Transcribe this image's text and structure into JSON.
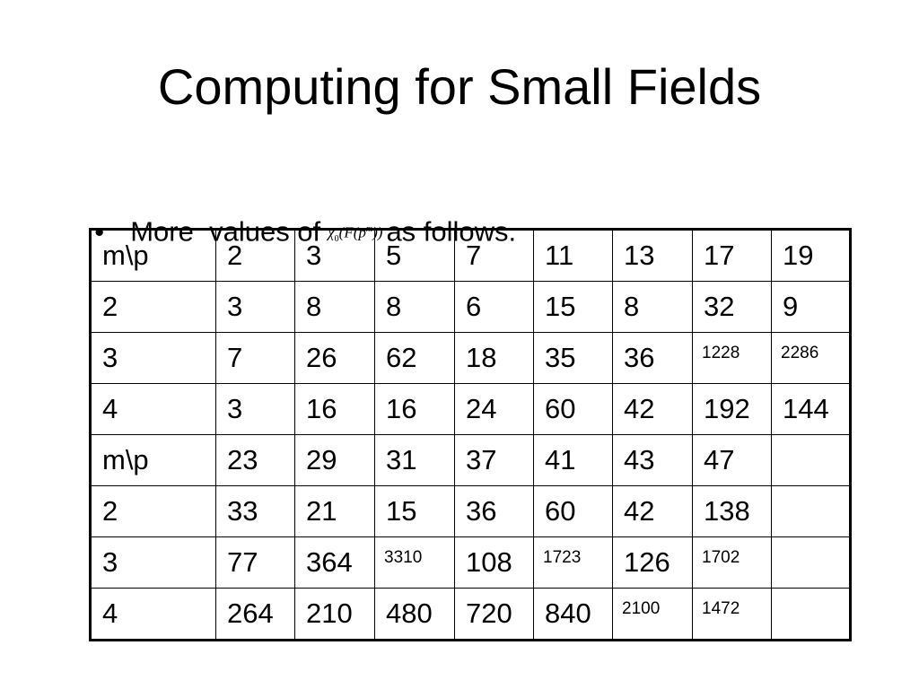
{
  "slide": {
    "title": "Computing for Small Fields",
    "bullet": {
      "symbol": "•",
      "text_before": "More  values of",
      "formula": "χ0(F(p^m))",
      "text_after": "as follows."
    }
  },
  "table": {
    "rows": [
      [
        {
          "v": "m\\p"
        },
        {
          "v": "2"
        },
        {
          "v": "3"
        },
        {
          "v": "5"
        },
        {
          "v": "7"
        },
        {
          "v": "11"
        },
        {
          "v": "13"
        },
        {
          "v": "17"
        },
        {
          "v": "19"
        }
      ],
      [
        {
          "v": "2"
        },
        {
          "v": "3"
        },
        {
          "v": "8"
        },
        {
          "v": "8"
        },
        {
          "v": "6"
        },
        {
          "v": "15"
        },
        {
          "v": "8"
        },
        {
          "v": "32"
        },
        {
          "v": "9"
        }
      ],
      [
        {
          "v": "3"
        },
        {
          "v": "7"
        },
        {
          "v": "26"
        },
        {
          "v": "62"
        },
        {
          "v": "18"
        },
        {
          "v": "35"
        },
        {
          "v": "36"
        },
        {
          "v": "1228",
          "small": true
        },
        {
          "v": "2286",
          "small": true
        }
      ],
      [
        {
          "v": "4"
        },
        {
          "v": "3"
        },
        {
          "v": "16"
        },
        {
          "v": "16"
        },
        {
          "v": "24"
        },
        {
          "v": "60"
        },
        {
          "v": "42"
        },
        {
          "v": "192"
        },
        {
          "v": "144"
        }
      ],
      [
        {
          "v": "m\\p"
        },
        {
          "v": "23"
        },
        {
          "v": "29"
        },
        {
          "v": "31"
        },
        {
          "v": "37"
        },
        {
          "v": "41"
        },
        {
          "v": "43"
        },
        {
          "v": "47"
        },
        {
          "v": ""
        }
      ],
      [
        {
          "v": "2"
        },
        {
          "v": "33"
        },
        {
          "v": "21"
        },
        {
          "v": "15"
        },
        {
          "v": "36"
        },
        {
          "v": "60"
        },
        {
          "v": "42"
        },
        {
          "v": "138"
        },
        {
          "v": ""
        }
      ],
      [
        {
          "v": "3"
        },
        {
          "v": "77"
        },
        {
          "v": "364"
        },
        {
          "v": "3310",
          "small": true
        },
        {
          "v": "108"
        },
        {
          "v": "1723",
          "small": true
        },
        {
          "v": "126"
        },
        {
          "v": "1702",
          "small": true
        },
        {
          "v": ""
        }
      ],
      [
        {
          "v": "4"
        },
        {
          "v": "264"
        },
        {
          "v": "210"
        },
        {
          "v": "480"
        },
        {
          "v": "720"
        },
        {
          "v": "840"
        },
        {
          "v": "2100",
          "small": true
        },
        {
          "v": "1472",
          "small": true
        },
        {
          "v": ""
        }
      ]
    ]
  }
}
